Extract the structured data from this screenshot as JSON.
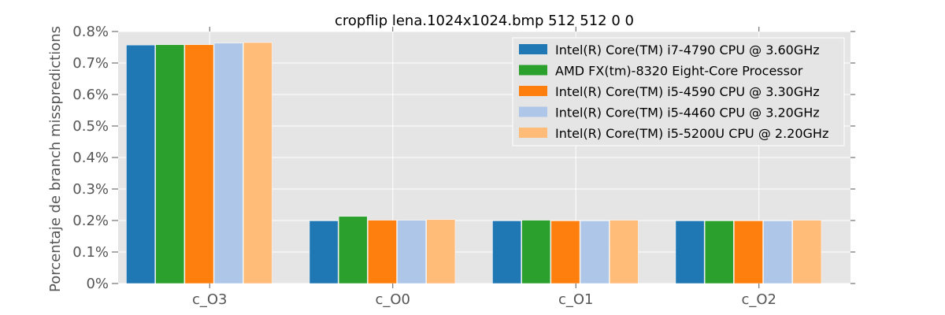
{
  "chart_data": {
    "type": "bar",
    "title": "cropflip lena.1024x1024.bmp 512 512 0 0",
    "ylabel": "Porcentaje de branch misspredictions",
    "xlabel": "",
    "ylim": [
      0,
      0.8
    ],
    "yticks": [
      "0%",
      "0.1%",
      "0.2%",
      "0.3%",
      "0.4%",
      "0.5%",
      "0.6%",
      "0.7%",
      "0.8%"
    ],
    "categories": [
      "c_O3",
      "c_O0",
      "c_O1",
      "c_O2"
    ],
    "grid": true,
    "legend_position": "top-right",
    "series": [
      {
        "name": "Intel(R) Core(TM) i7-4790 CPU @ 3.60GHz",
        "color": "#1f77b4",
        "values": [
          0.757,
          0.199,
          0.199,
          0.199
        ]
      },
      {
        "name": "AMD FX(tm)-8320 Eight-Core Processor",
        "color": "#2ca02c",
        "values": [
          0.758,
          0.213,
          0.201,
          0.199
        ]
      },
      {
        "name": "Intel(R) Core(TM) i5-4590 CPU @ 3.30GHz",
        "color": "#ff7f0e",
        "values": [
          0.758,
          0.201,
          0.199,
          0.199
        ]
      },
      {
        "name": "Intel(R) Core(TM) i5-4460  CPU @ 3.20GHz",
        "color": "#aec7e8",
        "values": [
          0.763,
          0.201,
          0.199,
          0.199
        ]
      },
      {
        "name": "Intel(R) Core(TM) i5-5200U CPU @ 2.20GHz",
        "color": "#ffbb78",
        "values": [
          0.765,
          0.203,
          0.201,
          0.201
        ]
      }
    ]
  }
}
